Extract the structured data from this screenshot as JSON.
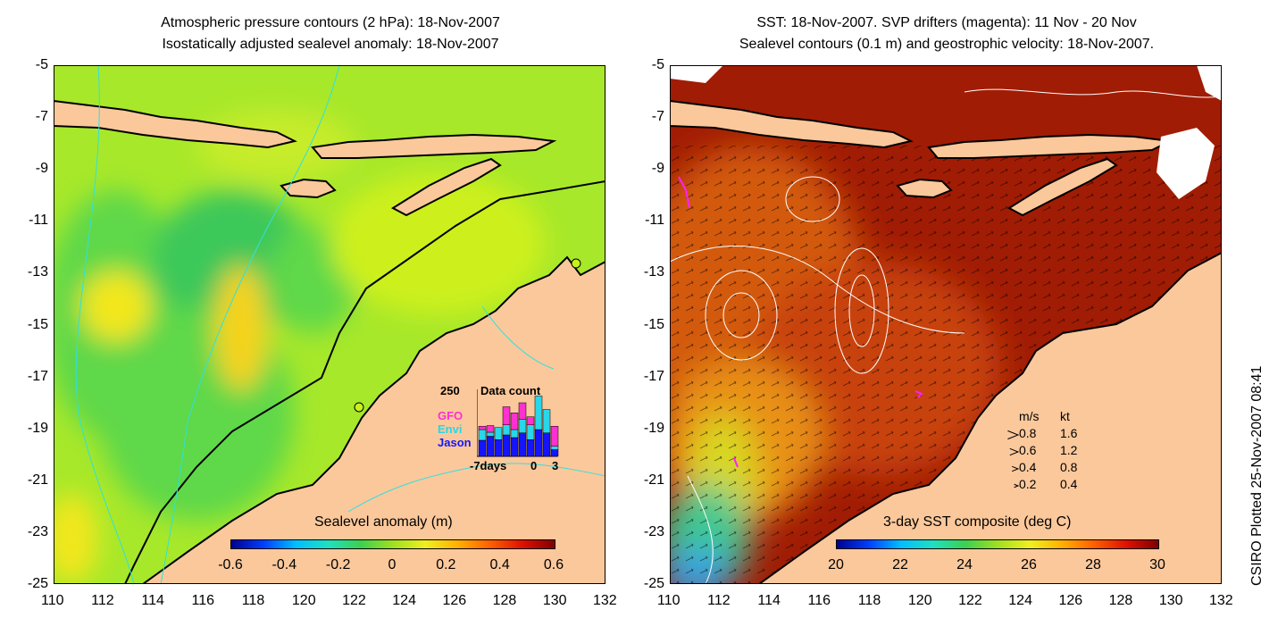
{
  "left_panel": {
    "title_line1": "Atmospheric pressure contours (2 hPa): 18-Nov-2007",
    "title_line2": "Isostatically adjusted sealevel anomaly: 18-Nov-2007",
    "colorbar": {
      "label": "Sealevel anomaly (m)",
      "ticks": [
        "-0.6",
        "-0.4",
        "-0.2",
        "0",
        "0.2",
        "0.4",
        "0.6"
      ],
      "range": [
        -0.6,
        0.6
      ]
    },
    "inset": {
      "top_value": "250",
      "title": "Data count",
      "satellites": [
        {
          "name": "GFO",
          "color": "#ff2fd1"
        },
        {
          "name": "Envi",
          "color": "#27d7ea"
        },
        {
          "name": "Jason",
          "color": "#1414ff"
        }
      ],
      "x_start": "-7days",
      "x_mid": "0",
      "x_end": "3",
      "bars": [
        {
          "jason": 0.24,
          "envi": 0.16,
          "gfo": 0.05
        },
        {
          "jason": 0.3,
          "envi": 0.06,
          "gfo": 0.1
        },
        {
          "jason": 0.25,
          "envi": 0.18,
          "gfo": 0.0
        },
        {
          "jason": 0.32,
          "envi": 0.15,
          "gfo": 0.27
        },
        {
          "jason": 0.28,
          "envi": 0.12,
          "gfo": 0.25
        },
        {
          "jason": 0.35,
          "envi": 0.2,
          "gfo": 0.25
        },
        {
          "jason": 0.25,
          "envi": 0.22,
          "gfo": 0.12
        },
        {
          "jason": 0.4,
          "envi": 0.5,
          "gfo": 0.0
        },
        {
          "jason": 0.35,
          "envi": 0.35,
          "gfo": 0.0
        },
        {
          "jason": 0.1,
          "envi": 0.05,
          "gfo": 0.3
        }
      ]
    }
  },
  "right_panel": {
    "title_line1": "SST: 18-Nov-2007. SVP drifters (magenta): 11 Nov - 20 Nov",
    "title_line2": "Sealevel contours (0.1 m) and geostrophic velocity: 18-Nov-2007.",
    "colorbar": {
      "label": "3-day SST composite (deg C)",
      "ticks": [
        "20",
        "22",
        "24",
        "26",
        "28",
        "30"
      ],
      "range": [
        20,
        30
      ]
    },
    "velocity_legend": {
      "header_ms": "m/s",
      "header_kt": "kt",
      "rows": [
        {
          "ms": "0.8",
          "kt": "1.6"
        },
        {
          "ms": "0.6",
          "kt": "1.2"
        },
        {
          "ms": "0.4",
          "kt": "0.8"
        },
        {
          "ms": "0.2",
          "kt": "0.4"
        }
      ]
    }
  },
  "axes": {
    "lat_ticks": [
      "-5",
      "-7",
      "-9",
      "-11",
      "-13",
      "-15",
      "-17",
      "-19",
      "-21",
      "-23",
      "-25"
    ],
    "lon_ticks": [
      "110",
      "112",
      "114",
      "116",
      "118",
      "120",
      "122",
      "124",
      "126",
      "128",
      "130",
      "132"
    ],
    "lat_range": [
      -25,
      -5
    ],
    "lon_range": [
      110,
      132
    ]
  },
  "credit": "CSIRO Plotted 25-Nov-2007 08:41",
  "colors": {
    "land": "#fbc89b",
    "ocean_shelf": "#c8f21c",
    "ocean_deep": "#6ee04a",
    "sst_warm": "#aa1b05",
    "drifter": "#ff1fff"
  }
}
